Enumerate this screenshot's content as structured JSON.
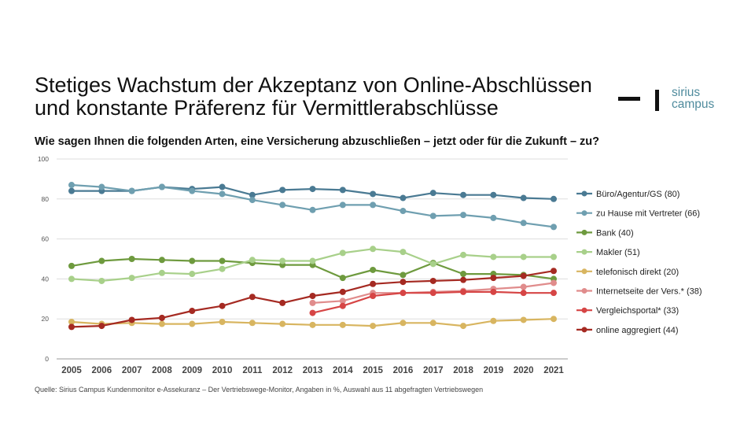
{
  "title_lines": [
    "Stetiges Wachstum der Akzeptanz von Online-Abschlüssen",
    "und konstante Präferenz für Vermittlerabschlüsse"
  ],
  "logo": {
    "line1": "sirius",
    "line2": "campus",
    "color": "#4f8b9d"
  },
  "subtitle": "Wie sagen Ihnen die folgenden Arten, eine Versicherung abzuschließen – jetzt oder für die Zukunft – zu?",
  "source": "Quelle: Sirius Campus Kundenmonitor e-Assekuranz – Der Vertriebswege-Monitor, Angaben in %, Auswahl aus 11 abgefragten Vertriebswegen",
  "chart_data": {
    "type": "line",
    "title": "",
    "xlabel": "",
    "ylabel": "",
    "x": [
      "2005",
      "2006",
      "2007",
      "2008",
      "2009",
      "2010",
      "2011",
      "2012",
      "2013",
      "2014",
      "2015",
      "2016",
      "2017",
      "2018",
      "2019",
      "2020",
      "2021"
    ],
    "ylim": [
      0,
      100
    ],
    "yticks": [
      0,
      20,
      40,
      60,
      80,
      100
    ],
    "grid": "horizontal",
    "legend_position": "right",
    "series": [
      {
        "name": "Büro/Agentur/GS (80)",
        "color": "#4a7a93",
        "values": [
          84,
          84,
          84,
          86,
          85,
          86,
          82,
          84.5,
          85,
          84.5,
          82.5,
          80.5,
          83,
          82,
          82,
          80.5,
          80
        ]
      },
      {
        "name": "zu Hause mit Vertreter (66)",
        "color": "#6f9fb0",
        "values": [
          87,
          86,
          84,
          86,
          84,
          82.5,
          79.5,
          77,
          74.5,
          77,
          77,
          74,
          71.5,
          72,
          70.5,
          68,
          66
        ]
      },
      {
        "name": "Bank (40)",
        "color": "#6e9a3e",
        "values": [
          46.5,
          49,
          50,
          49.5,
          49,
          49,
          48,
          47,
          47,
          40.5,
          44.5,
          42,
          48,
          42.5,
          42.5,
          42,
          40
        ]
      },
      {
        "name": "Makler (51)",
        "color": "#a8d08a",
        "values": [
          40,
          39,
          40.5,
          43,
          42.5,
          45,
          49.5,
          49,
          49,
          53,
          55,
          53.5,
          47.5,
          52,
          51,
          51,
          51
        ]
      },
      {
        "name": "telefonisch direkt (20)",
        "color": "#d8b560",
        "values": [
          18.5,
          17.5,
          18,
          17.5,
          17.5,
          18.5,
          18,
          17.5,
          17,
          17,
          16.5,
          18,
          18,
          16.5,
          19,
          19.5,
          20
        ]
      },
      {
        "name": "Internetseite der Vers.* (38)",
        "color": "#e08c8c",
        "values": [
          null,
          null,
          null,
          null,
          null,
          null,
          null,
          null,
          28,
          29,
          33,
          33,
          33.5,
          34,
          35,
          36,
          38
        ]
      },
      {
        "name": "Vergleichsportal* (33)",
        "color": "#d64545",
        "values": [
          null,
          null,
          null,
          null,
          null,
          null,
          null,
          null,
          23,
          26.5,
          31.5,
          33,
          33,
          33.5,
          33.5,
          33,
          33
        ]
      },
      {
        "name": "online aggregiert (44)",
        "color": "#a52a22",
        "values": [
          16,
          16.5,
          19.5,
          20.5,
          24,
          26.5,
          31,
          28,
          31.5,
          33.5,
          37.5,
          38.5,
          39,
          39.5,
          40.5,
          41.5,
          44
        ]
      }
    ]
  }
}
